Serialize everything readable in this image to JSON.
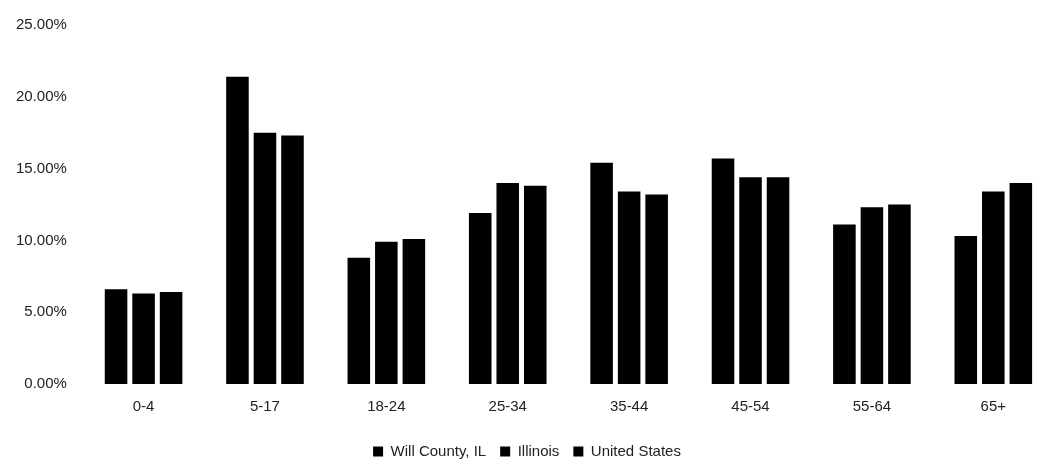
{
  "chart_data": {
    "type": "bar",
    "categories": [
      "0-4",
      "5-17",
      "18-24",
      "25-34",
      "35-44",
      "45-54",
      "55-64",
      "65+"
    ],
    "series": [
      {
        "name": "Will County, IL",
        "color": "#000000",
        "values": [
          6.6,
          21.4,
          8.8,
          11.9,
          15.4,
          15.7,
          11.1,
          10.3
        ]
      },
      {
        "name": "Illinois",
        "color": "#000000",
        "values": [
          6.3,
          17.5,
          9.9,
          14.0,
          13.4,
          14.4,
          12.3,
          13.4
        ]
      },
      {
        "name": "United States",
        "color": "#000000",
        "values": [
          6.4,
          17.3,
          10.1,
          13.8,
          13.2,
          14.4,
          12.5,
          14.0
        ]
      }
    ],
    "ylim": [
      0,
      25
    ],
    "yticks": [
      {
        "value": 0,
        "label": "0.00%"
      },
      {
        "value": 5,
        "label": "5.00%"
      },
      {
        "value": 10,
        "label": "10.00%"
      },
      {
        "value": 15,
        "label": "15.00%"
      },
      {
        "value": 20,
        "label": "20.00%"
      },
      {
        "value": 25,
        "label": "25.00%"
      }
    ],
    "grid": false,
    "legend": "bottom"
  }
}
